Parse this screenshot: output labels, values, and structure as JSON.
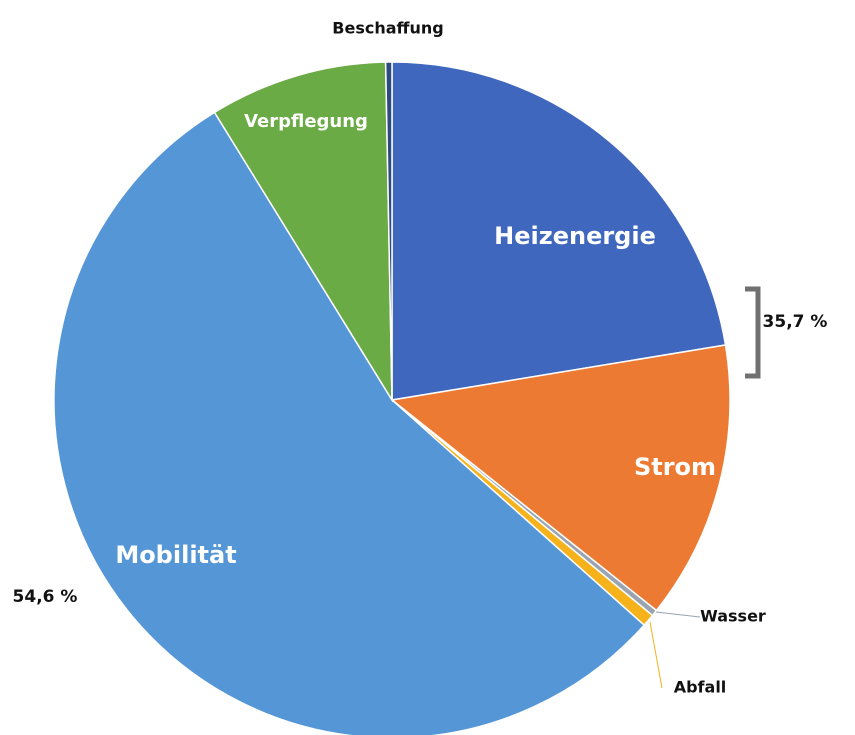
{
  "chart_data": {
    "type": "pie",
    "categories": [
      "Heizenergie",
      "Strom",
      "Wasser",
      "Abfall",
      "Mobilität",
      "Verpflegung",
      "Beschaffung"
    ],
    "values": [
      22.4,
      13.3,
      0.3,
      0.6,
      54.6,
      8.5,
      0.3
    ],
    "colors": [
      "#3f67bd",
      "#ec7a33",
      "#9aa3b0",
      "#f5b21b",
      "#5596d6",
      "#6aab45",
      "#2d4a80"
    ],
    "annotations": [
      "35,7 %",
      "54,6 %"
    ]
  }
}
